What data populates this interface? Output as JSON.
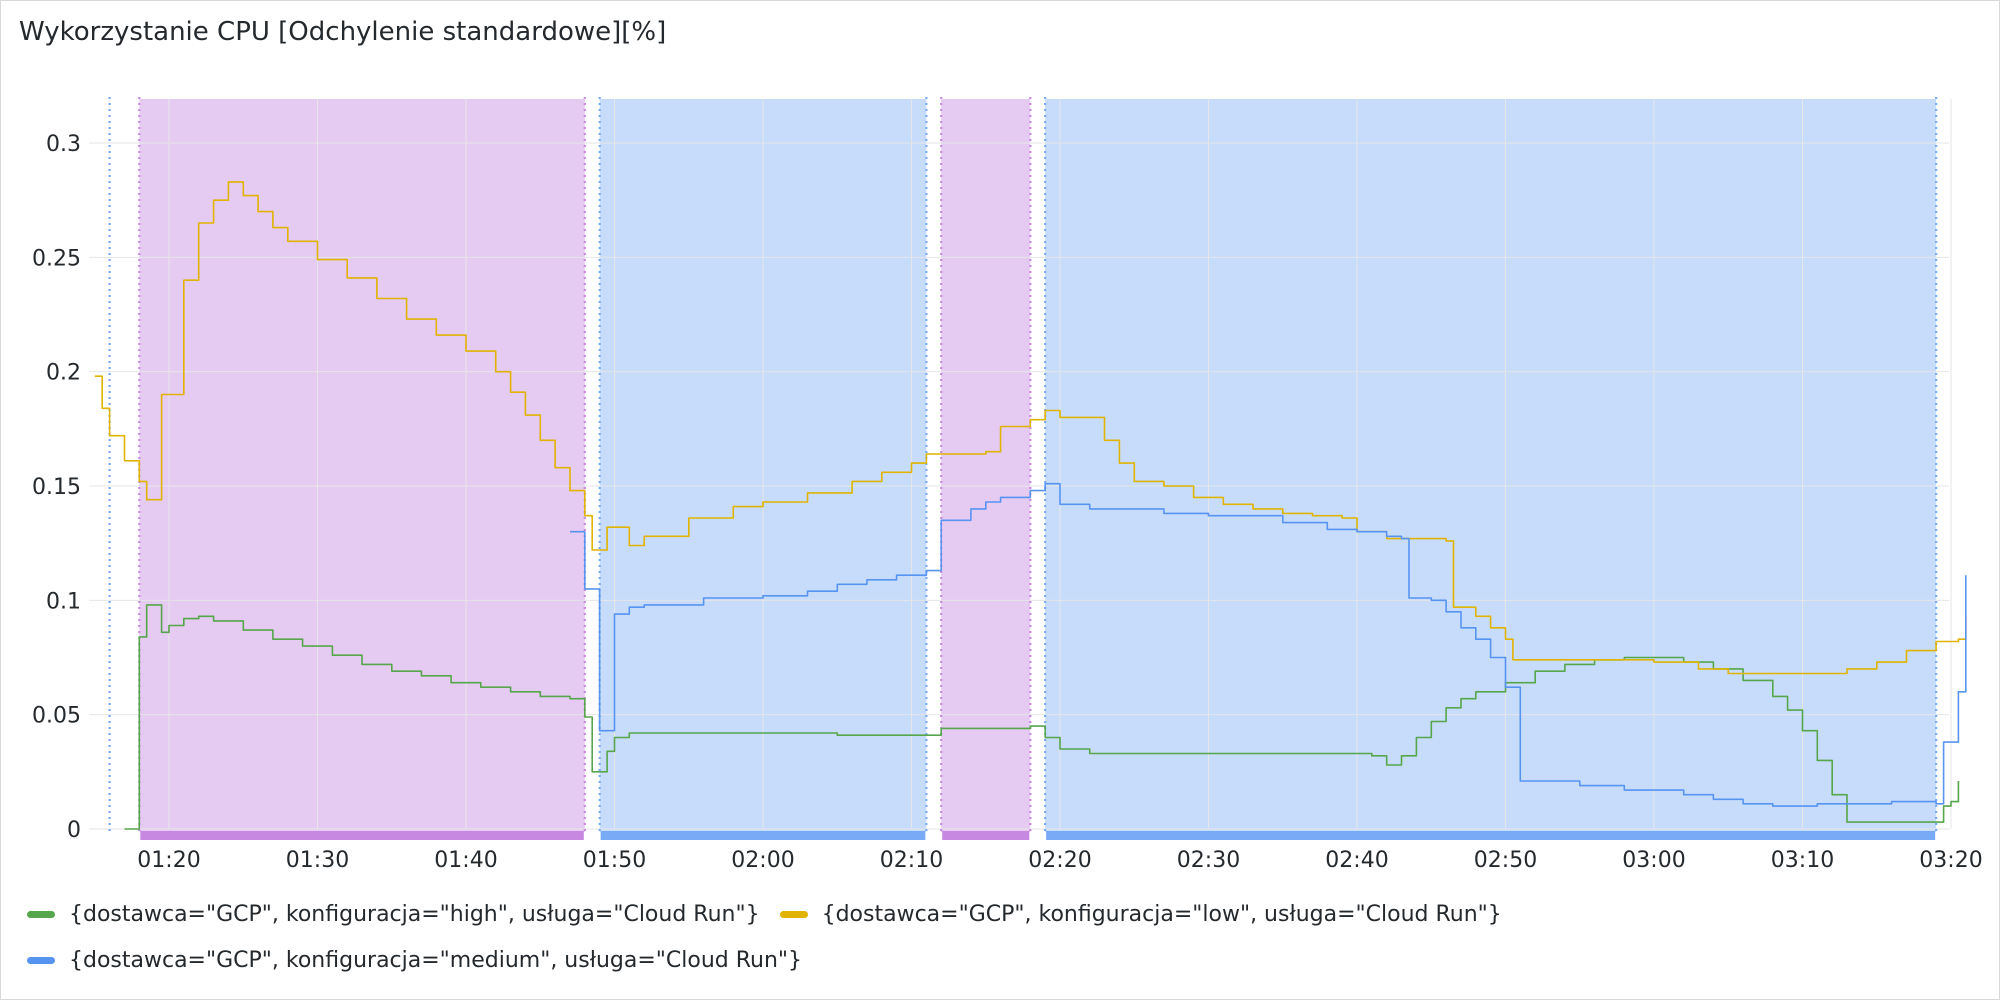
{
  "panel": {
    "title": "Wykorzystanie CPU [Odchylenie standardowe][%]"
  },
  "colors": {
    "high": "#56a64b",
    "low": "#e0b400",
    "medium": "#5794f2",
    "region_purple": "#dcb8ec",
    "region_blue": "#b4d0fa",
    "marker_purple": "#c688e0",
    "marker_blue": "#78aaf5",
    "grid": "#e6e6e9"
  },
  "chart_data": {
    "type": "line",
    "title": "Wykorzystanie CPU [Odchylenie standardowe][%]",
    "xlabel": "",
    "ylabel": "",
    "x_range": [
      "01:15",
      "03:21"
    ],
    "ylim": [
      0,
      0.32
    ],
    "grid": true,
    "legend_position": "bottom",
    "x_ticks": [
      "01:20",
      "01:30",
      "01:40",
      "01:50",
      "02:00",
      "02:10",
      "02:20",
      "02:30",
      "02:40",
      "02:50",
      "03:00",
      "03:10",
      "03:20"
    ],
    "y_ticks": [
      {
        "value": 0,
        "label": "0"
      },
      {
        "value": 0.05,
        "label": "0.05"
      },
      {
        "value": 0.1,
        "label": "0.1"
      },
      {
        "value": 0.15,
        "label": "0.15"
      },
      {
        "value": 0.2,
        "label": "0.2"
      },
      {
        "value": 0.25,
        "label": "0.25"
      },
      {
        "value": 0.3,
        "label": "0.3"
      }
    ],
    "regions": [
      {
        "start": "01:18",
        "end": "01:48",
        "kind": "purple"
      },
      {
        "start": "01:49",
        "end": "02:11",
        "kind": "blue"
      },
      {
        "start": "02:12",
        "end": "02:18",
        "kind": "purple"
      },
      {
        "start": "02:19",
        "end": "03:19",
        "kind": "blue"
      }
    ],
    "markers": [
      {
        "time": "01:16",
        "kind": "blue"
      },
      {
        "time": "01:18",
        "kind": "purple"
      },
      {
        "time": "01:48",
        "kind": "purple"
      },
      {
        "time": "01:49",
        "kind": "blue"
      },
      {
        "time": "02:11",
        "kind": "blue"
      },
      {
        "time": "02:12",
        "kind": "purple"
      },
      {
        "time": "02:18",
        "kind": "purple"
      },
      {
        "time": "02:19",
        "kind": "blue"
      },
      {
        "time": "03:19",
        "kind": "blue"
      }
    ],
    "series": [
      {
        "key": "high",
        "name": "{dostawca=\"GCP\", konfiguracja=\"high\", usługa=\"Cloud Run\"}",
        "points": [
          [
            "01:17",
            0
          ],
          [
            "01:17.5",
            0
          ],
          [
            "01:18",
            0.084
          ],
          [
            "01:18.5",
            0.098
          ],
          [
            "01:19",
            0.098
          ],
          [
            "01:19.5",
            0.086
          ],
          [
            "01:20",
            0.089
          ],
          [
            "01:21",
            0.092
          ],
          [
            "01:22",
            0.093
          ],
          [
            "01:23",
            0.091
          ],
          [
            "01:25",
            0.087
          ],
          [
            "01:27",
            0.083
          ],
          [
            "01:29",
            0.08
          ],
          [
            "01:31",
            0.076
          ],
          [
            "01:33",
            0.072
          ],
          [
            "01:35",
            0.069
          ],
          [
            "01:37",
            0.067
          ],
          [
            "01:39",
            0.064
          ],
          [
            "01:41",
            0.062
          ],
          [
            "01:43",
            0.06
          ],
          [
            "01:45",
            0.058
          ],
          [
            "01:47",
            0.057
          ],
          [
            "01:48",
            0.049
          ],
          [
            "01:48.5",
            0.025
          ],
          [
            "01:49",
            0.025
          ],
          [
            "01:49.5",
            0.034
          ],
          [
            "01:50",
            0.04
          ],
          [
            "01:51",
            0.042
          ],
          [
            "01:55",
            0.042
          ],
          [
            "02:00",
            0.042
          ],
          [
            "02:05",
            0.041
          ],
          [
            "02:10",
            0.041
          ],
          [
            "02:12",
            0.044
          ],
          [
            "02:15",
            0.044
          ],
          [
            "02:18",
            0.045
          ],
          [
            "02:19",
            0.04
          ],
          [
            "02:20",
            0.035
          ],
          [
            "02:22",
            0.033
          ],
          [
            "02:30",
            0.033
          ],
          [
            "02:38",
            0.033
          ],
          [
            "02:41",
            0.032
          ],
          [
            "02:42",
            0.028
          ],
          [
            "02:43",
            0.032
          ],
          [
            "02:44",
            0.04
          ],
          [
            "02:45",
            0.047
          ],
          [
            "02:46",
            0.053
          ],
          [
            "02:47",
            0.057
          ],
          [
            "02:48",
            0.06
          ],
          [
            "02:50",
            0.064
          ],
          [
            "02:52",
            0.069
          ],
          [
            "02:54",
            0.072
          ],
          [
            "02:56",
            0.074
          ],
          [
            "02:58",
            0.075
          ],
          [
            "03:00",
            0.075
          ],
          [
            "03:02",
            0.073
          ],
          [
            "03:04",
            0.07
          ],
          [
            "03:06",
            0.065
          ],
          [
            "03:08",
            0.058
          ],
          [
            "03:09",
            0.052
          ],
          [
            "03:10",
            0.043
          ],
          [
            "03:11",
            0.03
          ],
          [
            "03:12",
            0.015
          ],
          [
            "03:13",
            0.003
          ],
          [
            "03:18",
            0.003
          ],
          [
            "03:19",
            0.003
          ],
          [
            "03:19.5",
            0.01
          ],
          [
            "03:20",
            0.012
          ],
          [
            "03:20.5",
            0.021
          ]
        ]
      },
      {
        "key": "low",
        "name": "{dostawca=\"GCP\", konfiguracja=\"low\", usługa=\"Cloud Run\"}",
        "points": [
          [
            "01:15",
            0.198
          ],
          [
            "01:15.5",
            0.184
          ],
          [
            "01:16",
            0.172
          ],
          [
            "01:17",
            0.161
          ],
          [
            "01:18",
            0.152
          ],
          [
            "01:18.5",
            0.144
          ],
          [
            "01:19",
            0.144
          ],
          [
            "01:19.5",
            0.19
          ],
          [
            "01:20",
            0.19
          ],
          [
            "01:21",
            0.24
          ],
          [
            "01:22",
            0.265
          ],
          [
            "01:23",
            0.275
          ],
          [
            "01:24",
            0.283
          ],
          [
            "01:25",
            0.277
          ],
          [
            "01:26",
            0.27
          ],
          [
            "01:27",
            0.263
          ],
          [
            "01:28",
            0.257
          ],
          [
            "01:30",
            0.249
          ],
          [
            "01:32",
            0.241
          ],
          [
            "01:34",
            0.232
          ],
          [
            "01:36",
            0.223
          ],
          [
            "01:38",
            0.216
          ],
          [
            "01:40",
            0.209
          ],
          [
            "01:42",
            0.2
          ],
          [
            "01:43",
            0.191
          ],
          [
            "01:44",
            0.181
          ],
          [
            "01:45",
            0.17
          ],
          [
            "01:46",
            0.158
          ],
          [
            "01:47",
            0.148
          ],
          [
            "01:48",
            0.137
          ],
          [
            "01:48.5",
            0.122
          ],
          [
            "01:49",
            0.122
          ],
          [
            "01:49.5",
            0.132
          ],
          [
            "01:50",
            0.132
          ],
          [
            "01:51",
            0.124
          ],
          [
            "01:52",
            0.128
          ],
          [
            "01:55",
            0.136
          ],
          [
            "01:58",
            0.141
          ],
          [
            "02:00",
            0.143
          ],
          [
            "02:03",
            0.147
          ],
          [
            "02:06",
            0.152
          ],
          [
            "02:08",
            0.156
          ],
          [
            "02:10",
            0.16
          ],
          [
            "02:11",
            0.164
          ],
          [
            "02:13",
            0.164
          ],
          [
            "02:15",
            0.165
          ],
          [
            "02:16",
            0.176
          ],
          [
            "02:18",
            0.179
          ],
          [
            "02:19",
            0.183
          ],
          [
            "02:20",
            0.18
          ],
          [
            "02:22",
            0.18
          ],
          [
            "02:23",
            0.17
          ],
          [
            "02:24",
            0.16
          ],
          [
            "02:25",
            0.152
          ],
          [
            "02:27",
            0.15
          ],
          [
            "02:29",
            0.145
          ],
          [
            "02:31",
            0.142
          ],
          [
            "02:33",
            0.14
          ],
          [
            "02:35",
            0.138
          ],
          [
            "02:37",
            0.137
          ],
          [
            "02:39",
            0.136
          ],
          [
            "02:40",
            0.13
          ],
          [
            "02:42",
            0.127
          ],
          [
            "02:44",
            0.127
          ],
          [
            "02:46",
            0.126
          ],
          [
            "02:46.5",
            0.097
          ],
          [
            "02:47",
            0.097
          ],
          [
            "02:48",
            0.093
          ],
          [
            "02:49",
            0.088
          ],
          [
            "02:50",
            0.083
          ],
          [
            "02:50.5",
            0.074
          ],
          [
            "02:55",
            0.074
          ],
          [
            "03:00",
            0.073
          ],
          [
            "03:03",
            0.07
          ],
          [
            "03:05",
            0.068
          ],
          [
            "03:08",
            0.068
          ],
          [
            "03:11",
            0.068
          ],
          [
            "03:13",
            0.07
          ],
          [
            "03:15",
            0.073
          ],
          [
            "03:17",
            0.078
          ],
          [
            "03:19",
            0.082
          ],
          [
            "03:20.5",
            0.083
          ],
          [
            "03:21",
            0.093
          ]
        ]
      },
      {
        "key": "medium",
        "name": "{dostawca=\"GCP\", konfiguracja=\"medium\", usługa=\"Cloud Run\"}",
        "points": [
          [
            "01:47",
            0.13
          ],
          [
            "01:47.5",
            0.13
          ],
          [
            "01:48",
            0.105
          ],
          [
            "01:48.5",
            0.105
          ],
          [
            "01:49",
            0.043
          ],
          [
            "01:49.5",
            0.043
          ],
          [
            "01:50",
            0.094
          ],
          [
            "01:51",
            0.097
          ],
          [
            "01:52",
            0.098
          ],
          [
            "01:55",
            0.098
          ],
          [
            "01:56",
            0.101
          ],
          [
            "02:00",
            0.102
          ],
          [
            "02:03",
            0.104
          ],
          [
            "02:05",
            0.107
          ],
          [
            "02:07",
            0.109
          ],
          [
            "02:09",
            0.111
          ],
          [
            "02:11",
            0.113
          ],
          [
            "02:12",
            0.135
          ],
          [
            "02:13",
            0.135
          ],
          [
            "02:14",
            0.14
          ],
          [
            "02:15",
            0.143
          ],
          [
            "02:16",
            0.145
          ],
          [
            "02:18",
            0.148
          ],
          [
            "02:19",
            0.151
          ],
          [
            "02:20",
            0.142
          ],
          [
            "02:22",
            0.14
          ],
          [
            "02:25",
            0.14
          ],
          [
            "02:27",
            0.138
          ],
          [
            "02:30",
            0.137
          ],
          [
            "02:35",
            0.134
          ],
          [
            "02:38",
            0.131
          ],
          [
            "02:40",
            0.13
          ],
          [
            "02:42",
            0.128
          ],
          [
            "02:43",
            0.127
          ],
          [
            "02:43.5",
            0.101
          ],
          [
            "02:45",
            0.1
          ],
          [
            "02:46",
            0.095
          ],
          [
            "02:47",
            0.088
          ],
          [
            "02:48",
            0.083
          ],
          [
            "02:49",
            0.075
          ],
          [
            "02:50",
            0.062
          ],
          [
            "02:51",
            0.021
          ],
          [
            "02:52",
            0.021
          ],
          [
            "02:55",
            0.019
          ],
          [
            "02:58",
            0.017
          ],
          [
            "03:00",
            0.017
          ],
          [
            "03:02",
            0.015
          ],
          [
            "03:04",
            0.013
          ],
          [
            "03:06",
            0.011
          ],
          [
            "03:08",
            0.01
          ],
          [
            "03:11",
            0.011
          ],
          [
            "03:14",
            0.011
          ],
          [
            "03:16",
            0.012
          ],
          [
            "03:19",
            0.011
          ],
          [
            "03:19.5",
            0.038
          ],
          [
            "03:20",
            0.038
          ],
          [
            "03:20.5",
            0.06
          ],
          [
            "03:21",
            0.111
          ]
        ]
      }
    ]
  }
}
